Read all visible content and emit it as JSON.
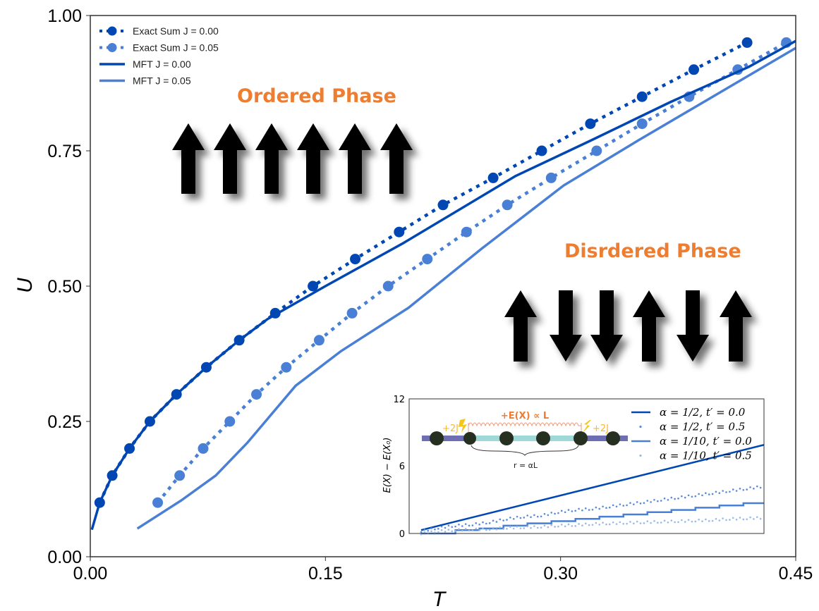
{
  "chart_data": {
    "type": "line",
    "xlabel": "T",
    "ylabel": "U",
    "xlim": [
      0,
      0.45
    ],
    "ylim": [
      0,
      1.0
    ],
    "xticks": [
      "0.00",
      "0.15",
      "0.30",
      "0.45"
    ],
    "yticks": [
      "0.00",
      "0.25",
      "0.50",
      "0.75",
      "1.00"
    ],
    "legend_position": "top-left",
    "series": [
      {
        "name": "Exact Sum J = 0.00",
        "style": "dotted-markers",
        "color": "#0047B3",
        "x": [
          0.006,
          0.014,
          0.025,
          0.038,
          0.055,
          0.074,
          0.095,
          0.118,
          0.142,
          0.169,
          0.197,
          0.225,
          0.257,
          0.288,
          0.319,
          0.352,
          0.385,
          0.419
        ],
        "y": [
          0.1,
          0.15,
          0.2,
          0.25,
          0.3,
          0.35,
          0.4,
          0.45,
          0.5,
          0.55,
          0.6,
          0.65,
          0.7,
          0.75,
          0.8,
          0.85,
          0.9,
          0.95
        ]
      },
      {
        "name": "Exact Sum J = 0.05",
        "style": "dotted-markers",
        "color": "#4A7FD6",
        "x": [
          0.043,
          0.057,
          0.072,
          0.089,
          0.106,
          0.125,
          0.146,
          0.167,
          0.19,
          0.215,
          0.24,
          0.266,
          0.294,
          0.323,
          0.352,
          0.382,
          0.413,
          0.444
        ],
        "y": [
          0.1,
          0.15,
          0.2,
          0.25,
          0.3,
          0.35,
          0.4,
          0.45,
          0.5,
          0.55,
          0.6,
          0.65,
          0.7,
          0.75,
          0.8,
          0.85,
          0.9,
          0.95
        ]
      },
      {
        "name": "MFT J = 0.00",
        "style": "solid",
        "color": "#0047B3",
        "x": [
          0.001,
          0.006,
          0.014,
          0.025,
          0.038,
          0.055,
          0.074,
          0.095,
          0.113,
          0.15,
          0.2,
          0.271,
          0.32,
          0.37,
          0.42,
          0.45
        ],
        "y": [
          0.05,
          0.1,
          0.15,
          0.2,
          0.25,
          0.3,
          0.35,
          0.4,
          0.439,
          0.5,
          0.58,
          0.703,
          0.77,
          0.84,
          0.905,
          0.953
        ]
      },
      {
        "name": "MFT J = 0.05",
        "style": "solid",
        "color": "#4A7FD6",
        "x": [
          0.03,
          0.058,
          0.08,
          0.1,
          0.131,
          0.16,
          0.203,
          0.25,
          0.302,
          0.35,
          0.4,
          0.45
        ],
        "y": [
          0.052,
          0.104,
          0.15,
          0.21,
          0.316,
          0.38,
          0.46,
          0.57,
          0.686,
          0.77,
          0.855,
          0.94
        ]
      }
    ],
    "annotations": {
      "ordered": {
        "label": "Ordered Phase",
        "spins": [
          "up",
          "up",
          "up",
          "up",
          "up",
          "up"
        ]
      },
      "disordered": {
        "label": "Disrdered Phase",
        "spins": [
          "up",
          "down",
          "down",
          "up",
          "down",
          "up"
        ]
      }
    },
    "inset": {
      "type": "line",
      "ylabel": "E(X) − E(X₀)",
      "ylim": [
        0,
        12
      ],
      "xlim": [
        0,
        1
      ],
      "yticks": [
        "0",
        "6",
        "12"
      ],
      "legend_position": "top-right",
      "series": [
        {
          "name": "α = 1/2, t′ = 0.0",
          "style": "solid",
          "color": "#0047B3",
          "x": [
            0,
            1
          ],
          "y": [
            0.3,
            7.9
          ]
        },
        {
          "name": "α = 1/2, t′ = 0.5",
          "style": "dots",
          "color": "#5A8AD8",
          "x": [
            0,
            0.05,
            0.1,
            0.15,
            0.2,
            0.25,
            0.3,
            0.35,
            0.4,
            0.45,
            0.5,
            0.55,
            0.6,
            0.65,
            0.7,
            0.75,
            0.8,
            0.85,
            0.9,
            0.95,
            1.0
          ],
          "y": [
            0.2,
            0.5,
            0.7,
            0.8,
            1.0,
            1.3,
            1.5,
            1.6,
            1.9,
            2.1,
            2.2,
            2.4,
            2.6,
            2.8,
            3.0,
            3.2,
            3.4,
            3.6,
            3.8,
            4.0,
            4.2
          ]
        },
        {
          "name": "α = 1/10, t′ = 0.0",
          "style": "steps",
          "color": "#4A7FD6",
          "x": [
            0,
            0.1,
            0.17,
            0.24,
            0.31,
            0.38,
            0.45,
            0.52,
            0.59,
            0.66,
            0.73,
            0.8,
            0.87,
            0.94,
            1.0
          ],
          "y": [
            0.0,
            0.3,
            0.45,
            0.7,
            0.9,
            1.1,
            1.3,
            1.5,
            1.7,
            1.9,
            2.1,
            2.3,
            2.5,
            2.7,
            2.7
          ]
        },
        {
          "name": "α = 1/10, t′ = 0.5",
          "style": "dots",
          "color": "#9BB9E8",
          "x": [
            0,
            0.05,
            0.1,
            0.15,
            0.2,
            0.25,
            0.3,
            0.35,
            0.4,
            0.45,
            0.5,
            0.55,
            0.6,
            0.65,
            0.7,
            0.75,
            0.8,
            0.85,
            0.9,
            0.95,
            1.0
          ],
          "y": [
            0.0,
            0.2,
            0.3,
            0.35,
            0.4,
            0.5,
            0.55,
            0.6,
            0.7,
            0.75,
            0.85,
            0.9,
            0.95,
            1.0,
            1.05,
            1.1,
            1.15,
            1.2,
            1.3,
            1.35,
            1.4
          ]
        }
      ],
      "schematic": {
        "energy_label": "+E(X) ∝ L",
        "left_coupling": "+2J",
        "right_coupling": "+2J",
        "distance_label": "r = αL"
      }
    }
  }
}
